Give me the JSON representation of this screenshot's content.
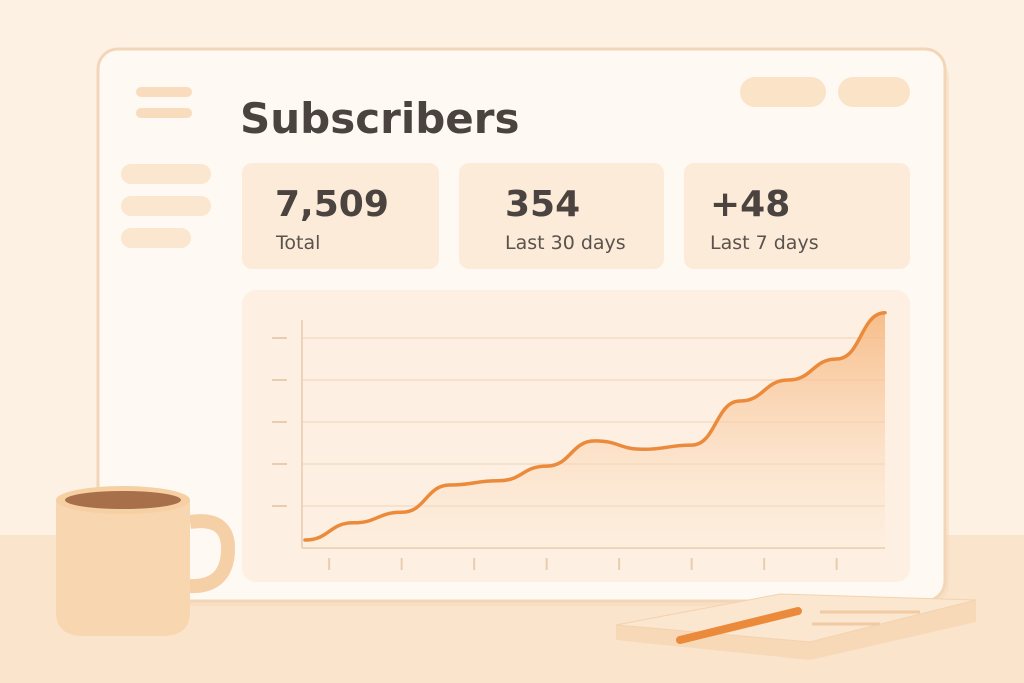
{
  "header": {
    "title": "Subscribers"
  },
  "stats": [
    {
      "value": "7,509",
      "label": "Total"
    },
    {
      "value": "354",
      "label": "Last 30 days"
    },
    {
      "value": "+48",
      "label": "Last 7 days"
    }
  ],
  "chart": {
    "type": "area",
    "color": "#ec8a3c",
    "x": [
      0,
      1,
      2,
      3,
      4,
      5,
      6,
      7,
      8,
      9,
      10,
      11,
      12
    ],
    "values": [
      3.8,
      12,
      17,
      30,
      32,
      39,
      51,
      47,
      49,
      70,
      80,
      90,
      112
    ],
    "xlim": [
      0,
      12
    ],
    "ylim": [
      0,
      120
    ],
    "xticks": [
      0.5,
      2,
      3.5,
      5,
      6.5,
      8,
      9.5,
      11
    ],
    "yticks": [
      20,
      40,
      60,
      80,
      100
    ],
    "grid": true
  }
}
